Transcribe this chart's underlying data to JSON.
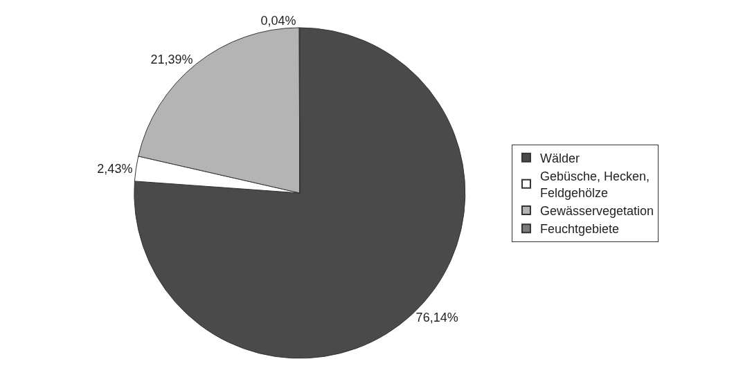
{
  "chart_data": {
    "type": "pie",
    "categories": [
      "Wälder",
      "Gebüsche, Hecken,\nFeldgehölze",
      "Gewässervegetation",
      "Feuchtgebiete"
    ],
    "values": [
      76.14,
      2.43,
      21.39,
      0.04
    ],
    "value_labels": [
      "76,14%",
      "2,43%",
      "21,39%",
      "0,04%"
    ],
    "colors": [
      "#4a4a4a",
      "#ffffff",
      "#b4b4b4",
      "#7a7a7a"
    ],
    "legend": "right"
  }
}
